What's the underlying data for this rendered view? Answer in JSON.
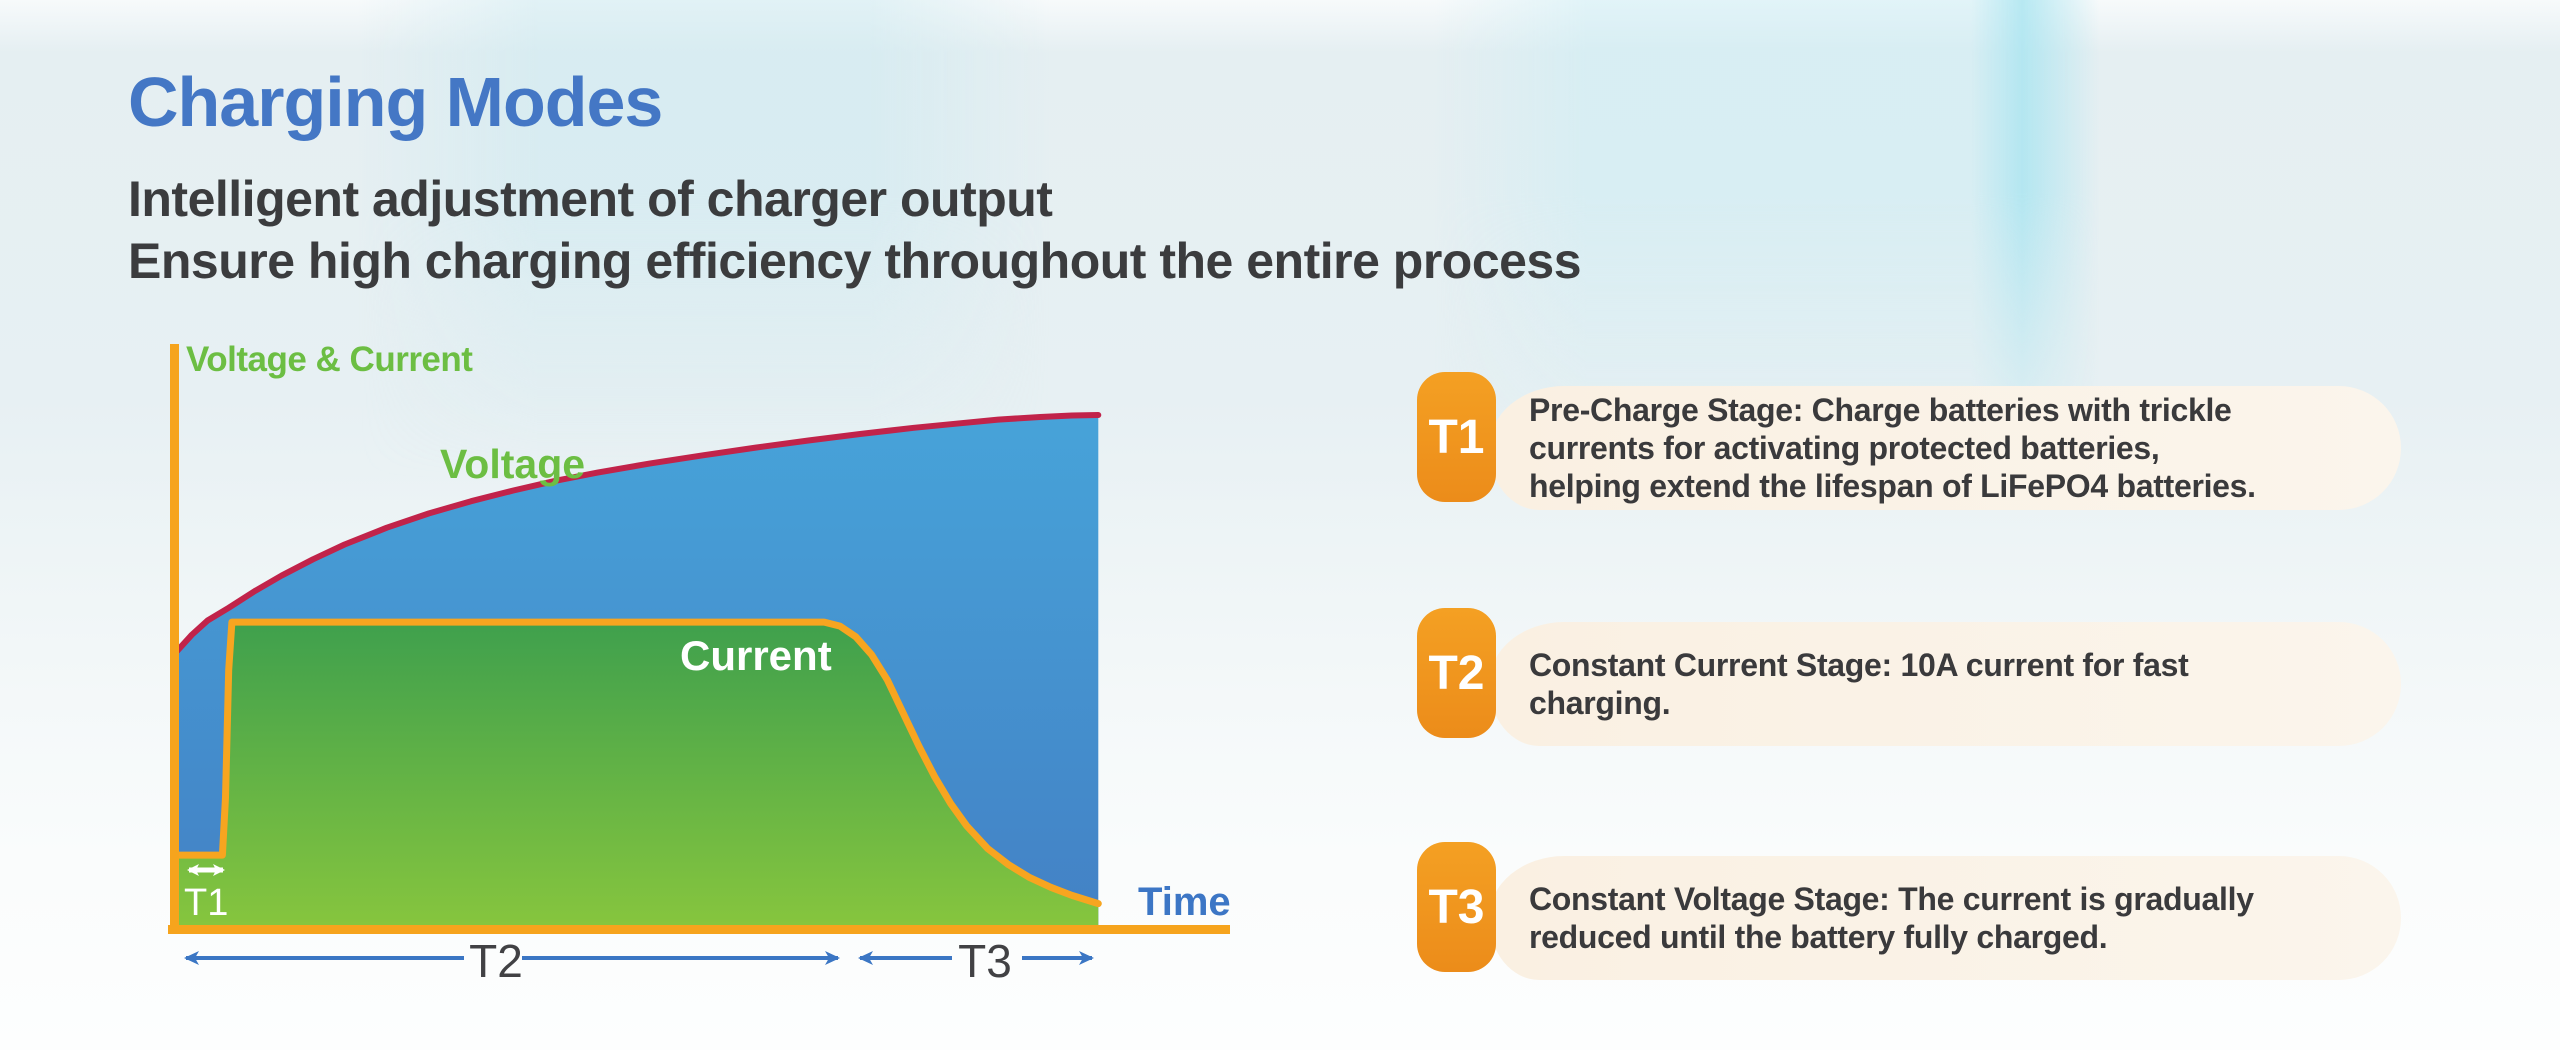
{
  "page": {
    "title": "Charging Modes",
    "subtitle_lines": [
      "Intelligent adjustment of charger output",
      "Ensure high charging efficiency throughout the entire process"
    ]
  },
  "colors": {
    "title_blue": "#4477C5",
    "subtitle_dark": "#3B3C3E",
    "axis_orange": "#F6A41D",
    "label_green": "#6CBE43",
    "time_blue": "#3C76C5",
    "dim_arrow_blue": "#3B76C4",
    "dim_label_dark": "#414144",
    "badge_orange_top": "#F4A023",
    "badge_orange_bottom": "#EC8C1A",
    "bubble_cream": "#FAF0E2",
    "bubble_cream_light": "#FBF5EC",
    "stage_text_dark": "#3A3A3C"
  },
  "chart_data": {
    "type": "area",
    "xlabel": "Time",
    "ylabel": "Voltage & Current",
    "x_range": [
      0,
      10
    ],
    "y_range": [
      0,
      10
    ],
    "grid": false,
    "legend": false,
    "units": "relative (axes are unlabeled in the figure)",
    "stages": [
      {
        "label": "T1",
        "t_start": 0,
        "t_end": 0.5
      },
      {
        "label": "T2",
        "t_start": 0.5,
        "t_end": 6.3
      },
      {
        "label": "T3",
        "t_start": 6.3,
        "t_end": 8.75
      }
    ],
    "series": [
      {
        "name": "Voltage",
        "line_color": "#C1234A",
        "fill_top": "#47A3D9",
        "fill_bottom": "#4381C5",
        "points": [
          [
            0,
            5.35
          ],
          [
            0.15,
            5.69
          ],
          [
            0.3,
            5.97
          ],
          [
            0.5,
            6.22
          ],
          [
            0.75,
            6.55
          ],
          [
            1.0,
            6.85
          ],
          [
            1.3,
            7.17
          ],
          [
            1.6,
            7.46
          ],
          [
            2.0,
            7.79
          ],
          [
            2.4,
            8.07
          ],
          [
            2.8,
            8.31
          ],
          [
            3.2,
            8.52
          ],
          [
            3.6,
            8.71
          ],
          [
            4.0,
            8.87
          ],
          [
            4.5,
            9.05
          ],
          [
            5.0,
            9.21
          ],
          [
            5.5,
            9.36
          ],
          [
            6.0,
            9.5
          ],
          [
            6.5,
            9.63
          ],
          [
            7.0,
            9.75
          ],
          [
            7.4,
            9.83
          ],
          [
            7.8,
            9.91
          ],
          [
            8.2,
            9.96
          ],
          [
            8.5,
            9.99
          ],
          [
            8.75,
            10.0
          ]
        ]
      },
      {
        "name": "Current",
        "line_color": "#F7A520",
        "fill_top": "#3FA04D",
        "fill_bottom": "#86C53E",
        "points": [
          [
            0,
            1.37
          ],
          [
            0.44,
            1.37
          ],
          [
            0.47,
            2.5
          ],
          [
            0.5,
            5.0
          ],
          [
            0.53,
            5.94
          ],
          [
            1.0,
            5.94
          ],
          [
            6.15,
            5.94
          ],
          [
            6.3,
            5.86
          ],
          [
            6.45,
            5.65
          ],
          [
            6.6,
            5.3
          ],
          [
            6.75,
            4.8
          ],
          [
            6.9,
            4.15
          ],
          [
            7.05,
            3.5
          ],
          [
            7.2,
            2.9
          ],
          [
            7.35,
            2.38
          ],
          [
            7.5,
            1.95
          ],
          [
            7.7,
            1.5
          ],
          [
            7.9,
            1.18
          ],
          [
            8.1,
            0.93
          ],
          [
            8.3,
            0.74
          ],
          [
            8.5,
            0.58
          ],
          [
            8.75,
            0.42
          ]
        ]
      }
    ]
  },
  "stages": [
    {
      "badge": "T1",
      "lines": [
        "Pre-Charge Stage: Charge batteries with trickle",
        "currents for activating protected batteries,",
        "helping extend the lifespan of LiFePO4 batteries."
      ]
    },
    {
      "badge": "T2",
      "lines": [
        "Constant Current Stage: 10A current for fast",
        "charging."
      ]
    },
    {
      "badge": "T3",
      "lines": [
        "Constant Voltage Stage: The current is gradually",
        "reduced until the battery fully charged."
      ]
    }
  ]
}
